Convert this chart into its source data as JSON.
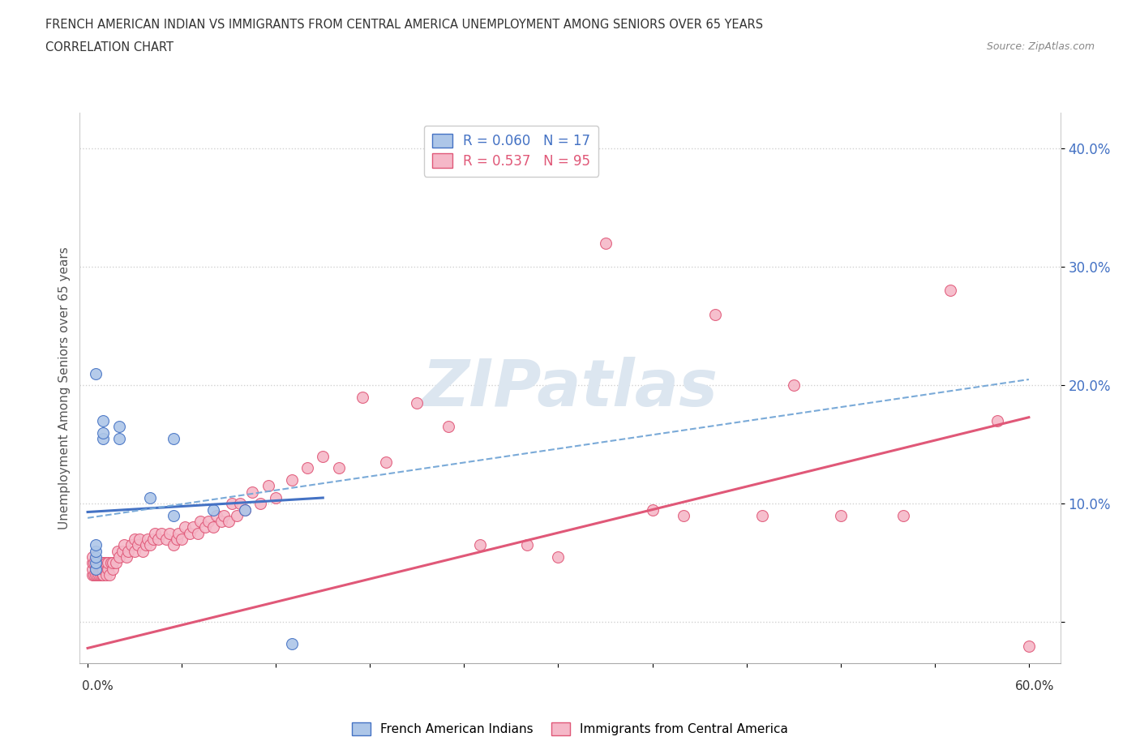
{
  "title_line1": "FRENCH AMERICAN INDIAN VS IMMIGRANTS FROM CENTRAL AMERICA UNEMPLOYMENT AMONG SENIORS OVER 65 YEARS",
  "title_line2": "CORRELATION CHART",
  "source_text": "Source: ZipAtlas.com",
  "xlabel_start": "0.0%",
  "xlabel_end": "60.0%",
  "ylabel": "Unemployment Among Seniors over 65 years",
  "xlim": [
    -0.005,
    0.62
  ],
  "ylim": [
    -0.035,
    0.43
  ],
  "ytick_positions": [
    0.0,
    0.1,
    0.2,
    0.3,
    0.4
  ],
  "ytick_labels": [
    "",
    "10.0%",
    "20.0%",
    "30.0%",
    "40.0%"
  ],
  "legend_blue_R": "R = 0.060",
  "legend_blue_N": "N = 17",
  "legend_pink_R": "R = 0.537",
  "legend_pink_N": "N = 95",
  "blue_scatter_color": "#adc6e8",
  "blue_line_color": "#4472c4",
  "pink_scatter_color": "#f5b8c8",
  "pink_line_color": "#e05878",
  "dashed_line_color": "#7aaad8",
  "background_color": "#ffffff",
  "watermark_color": "#dce6f0",
  "blue_line_x": [
    0.0,
    0.15
  ],
  "blue_line_y": [
    0.093,
    0.105
  ],
  "dashed_line_x": [
    0.0,
    0.6
  ],
  "dashed_line_y": [
    0.088,
    0.205
  ],
  "pink_line_x": [
    0.0,
    0.6
  ],
  "pink_line_y": [
    -0.022,
    0.173
  ],
  "blue_scatter_x": [
    0.005,
    0.005,
    0.005,
    0.005,
    0.005,
    0.005,
    0.01,
    0.01,
    0.01,
    0.02,
    0.02,
    0.04,
    0.055,
    0.055,
    0.08,
    0.1,
    0.13
  ],
  "blue_scatter_y": [
    0.045,
    0.05,
    0.055,
    0.06,
    0.065,
    0.21,
    0.155,
    0.16,
    0.17,
    0.155,
    0.165,
    0.105,
    0.09,
    0.155,
    0.095,
    0.095,
    -0.018
  ],
  "pink_scatter_x": [
    0.003,
    0.003,
    0.003,
    0.003,
    0.004,
    0.004,
    0.005,
    0.005,
    0.006,
    0.006,
    0.007,
    0.007,
    0.008,
    0.008,
    0.009,
    0.009,
    0.01,
    0.01,
    0.01,
    0.012,
    0.012,
    0.013,
    0.013,
    0.014,
    0.015,
    0.016,
    0.016,
    0.018,
    0.019,
    0.02,
    0.022,
    0.023,
    0.025,
    0.026,
    0.028,
    0.03,
    0.03,
    0.032,
    0.033,
    0.035,
    0.037,
    0.038,
    0.04,
    0.042,
    0.043,
    0.045,
    0.047,
    0.05,
    0.052,
    0.055,
    0.057,
    0.058,
    0.06,
    0.062,
    0.065,
    0.067,
    0.07,
    0.072,
    0.075,
    0.077,
    0.08,
    0.082,
    0.085,
    0.087,
    0.09,
    0.092,
    0.095,
    0.097,
    0.1,
    0.105,
    0.11,
    0.115,
    0.12,
    0.13,
    0.14,
    0.15,
    0.16,
    0.175,
    0.19,
    0.21,
    0.23,
    0.25,
    0.28,
    0.3,
    0.33,
    0.36,
    0.38,
    0.4,
    0.43,
    0.45,
    0.48,
    0.52,
    0.55,
    0.58,
    0.6
  ],
  "pink_scatter_y": [
    0.04,
    0.045,
    0.05,
    0.055,
    0.04,
    0.05,
    0.04,
    0.045,
    0.04,
    0.05,
    0.04,
    0.05,
    0.04,
    0.05,
    0.04,
    0.05,
    0.04,
    0.045,
    0.05,
    0.04,
    0.05,
    0.045,
    0.05,
    0.04,
    0.05,
    0.045,
    0.05,
    0.05,
    0.06,
    0.055,
    0.06,
    0.065,
    0.055,
    0.06,
    0.065,
    0.06,
    0.07,
    0.065,
    0.07,
    0.06,
    0.065,
    0.07,
    0.065,
    0.07,
    0.075,
    0.07,
    0.075,
    0.07,
    0.075,
    0.065,
    0.07,
    0.075,
    0.07,
    0.08,
    0.075,
    0.08,
    0.075,
    0.085,
    0.08,
    0.085,
    0.08,
    0.09,
    0.085,
    0.09,
    0.085,
    0.1,
    0.09,
    0.1,
    0.095,
    0.11,
    0.1,
    0.115,
    0.105,
    0.12,
    0.13,
    0.14,
    0.13,
    0.19,
    0.135,
    0.185,
    0.165,
    0.065,
    0.065,
    0.055,
    0.32,
    0.095,
    0.09,
    0.26,
    0.09,
    0.2,
    0.09,
    0.09,
    0.28,
    0.17,
    -0.02
  ]
}
